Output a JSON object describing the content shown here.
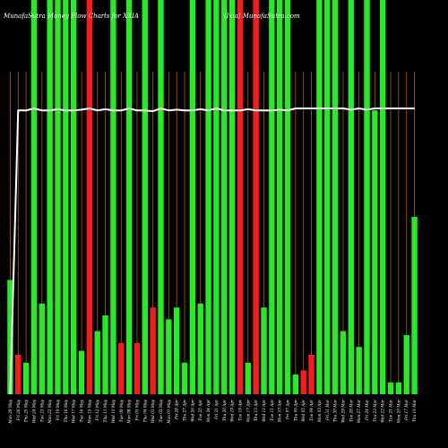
{
  "header": {
    "left_title": "MunafaSutra  Money Flow  Charts for XXIA",
    "right_title": "(Ixia) MunafaSutra.com"
  },
  "colors": {
    "background": "#000000",
    "up_bar": "#22ee22",
    "down_bar": "#ff1a1a",
    "grid_line": "#b35a00",
    "price_line": "#ffffff"
  },
  "chart_data": {
    "type": "bar",
    "title": "MunafaSutra  Money Flow  Charts for XXIA",
    "subtitle": "(Ixia) MunafaSutra.com",
    "xlabel": "",
    "ylabel": "",
    "grid": true,
    "legend": "none",
    "ylim": [
      0,
      100
    ],
    "categories": [
      "Mon 29 May",
      "Fri 26 May",
      "Thu 25 May",
      "Wed 24 May",
      "Tue 23 May",
      "Mon 22 May",
      "Fri 19 May",
      "Thu 18 May",
      "Wed 17 May",
      "Tue 16 May",
      "Mon 15 May",
      "Fri 12 May",
      "Thu 11 May",
      "Wed 10 May",
      "Tue 09 May",
      "Mon 08 May",
      "Fri 05 May",
      "Thu 04 May",
      "Wed 03 May",
      "Tue 02 May",
      "Mon 01 May",
      "Fri 28 Apr",
      "Thu 27 Apr",
      "Wed 26 Apr",
      "Tue 25 Apr",
      "Mon 24 Apr",
      "Fri 21 Apr",
      "Thu 20 Apr",
      "Wed 19 Apr",
      "Tue 18 Apr",
      "Mon 17 Apr",
      "Thu 13 Apr",
      "Wed 12 Apr",
      "Tue 11 Apr",
      "Mon 10 Apr",
      "Fri 07 Apr",
      "Thu 06 Apr",
      "Wed 05 Apr",
      "Tue 04 Apr",
      "Mon 03 Apr",
      "Fri 31 Mar",
      "Thu 30 Mar",
      "Wed 29 Mar",
      "Tue 28 Mar",
      "Mon 27 Mar",
      "Fri 24 Mar",
      "Thu 23 Mar",
      "Wed 22 Mar",
      "Tue 21 Mar",
      "Mon 20 Mar",
      "Fri 17 Mar",
      "Thu 16 Mar"
    ],
    "series": [
      {
        "type": "bar",
        "values": [
          29,
          10,
          8,
          100,
          23,
          100,
          100,
          100,
          100,
          11,
          100,
          16,
          20,
          100,
          13,
          100,
          13,
          100,
          22,
          100,
          19,
          22,
          8,
          100,
          23,
          100,
          100,
          100,
          100,
          100,
          8,
          100,
          22,
          100,
          100,
          100,
          5,
          6,
          10,
          100,
          100,
          100,
          16,
          100,
          12,
          100,
          72,
          100,
          3,
          3,
          15,
          45
        ],
        "colors": [
          "up",
          "down",
          "up",
          "up",
          "up",
          "up",
          "up",
          "up",
          "up",
          "up",
          "down",
          "up",
          "up",
          "up",
          "down",
          "up",
          "down",
          "up",
          "down",
          "up",
          "up",
          "up",
          "up",
          "up",
          "up",
          "up",
          "up",
          "up",
          "up",
          "down",
          "up",
          "down",
          "up",
          "up",
          "up",
          "up",
          "up",
          "down",
          "down",
          "up",
          "up",
          "up",
          "up",
          "up",
          "up",
          "up",
          "up",
          "up",
          "up",
          "up",
          "up",
          "up"
        ]
      },
      {
        "type": "line",
        "values": [
          0,
          72,
          72,
          72.5,
          72,
          72,
          72.3,
          72,
          72,
          72.2,
          72.5,
          72,
          72.3,
          72,
          72,
          72.5,
          72,
          72,
          71.8,
          72.5,
          72,
          72.2,
          72,
          72,
          72.3,
          72,
          72.5,
          72,
          72,
          72,
          72.3,
          72,
          72,
          72,
          72.2,
          72,
          72.5,
          72.5,
          72.5,
          72.5,
          72.5,
          72.5,
          72.5,
          72.2,
          72.5,
          72.2,
          72.5,
          72.5,
          72.5,
          72.5,
          72.5,
          72.5
        ]
      }
    ]
  }
}
